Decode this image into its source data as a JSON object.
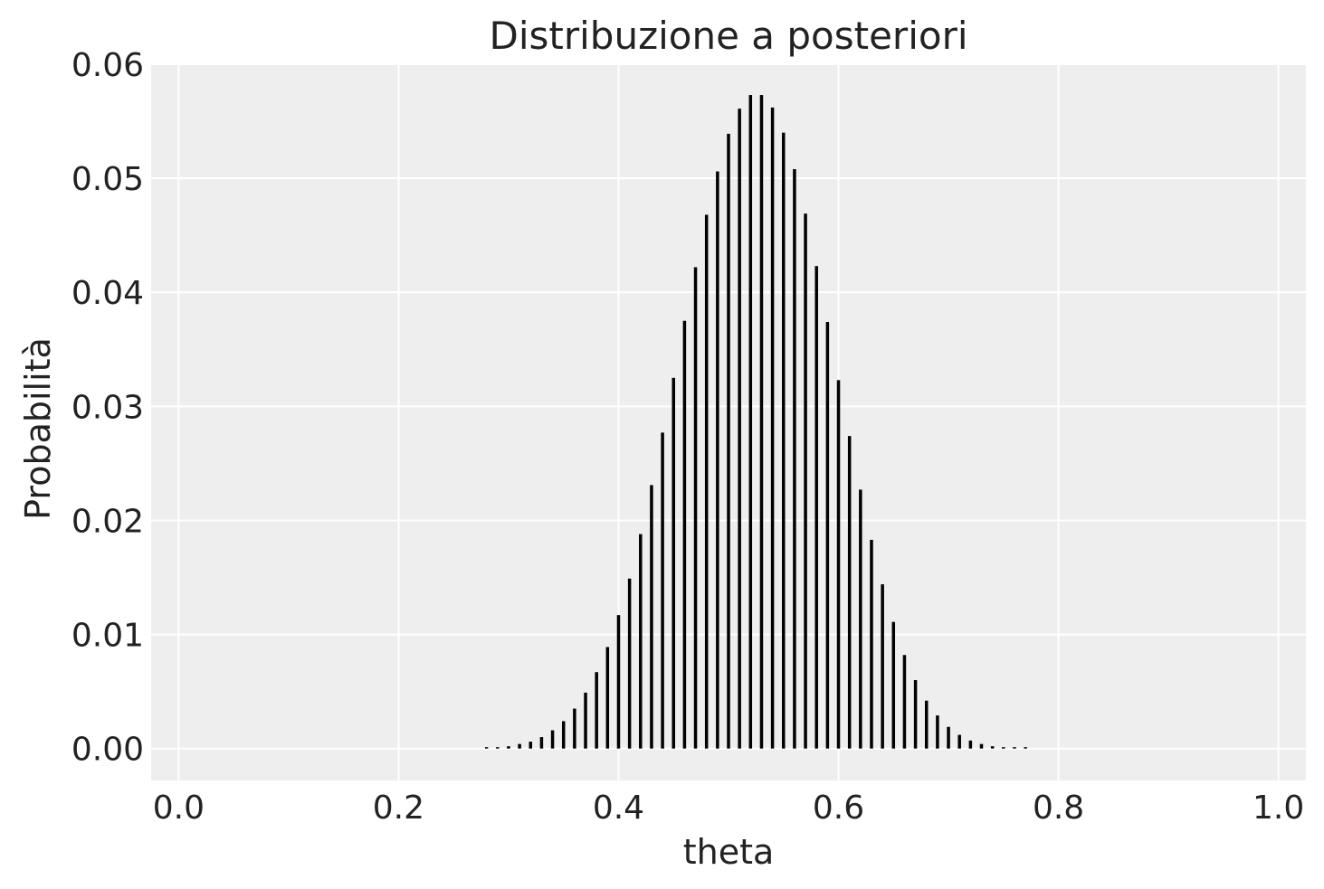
{
  "chart_data": {
    "type": "bar",
    "title": "Distribuzione a posteriori",
    "xlabel": "theta",
    "ylabel": "Probabilità",
    "xlim": [
      -0.025,
      1.025
    ],
    "ylim": [
      -0.0028,
      0.06
    ],
    "xticks": [
      0.0,
      0.2,
      0.4,
      0.6,
      0.8,
      1.0
    ],
    "xtick_labels": [
      "0.0",
      "0.2",
      "0.4",
      "0.6",
      "0.8",
      "1.0"
    ],
    "yticks": [
      0.0,
      0.01,
      0.02,
      0.03,
      0.04,
      0.05,
      0.06
    ],
    "ytick_labels": [
      "0.00",
      "0.01",
      "0.02",
      "0.03",
      "0.04",
      "0.05",
      "0.06"
    ],
    "grid": true,
    "background_color": "#eeeeee",
    "bar_color": "#000000",
    "x": [
      0.28,
      0.29,
      0.3,
      0.31,
      0.32,
      0.33,
      0.34,
      0.35,
      0.36,
      0.37,
      0.38,
      0.39,
      0.4,
      0.41,
      0.42,
      0.43,
      0.44,
      0.45,
      0.46,
      0.47,
      0.48,
      0.49,
      0.5,
      0.51,
      0.52,
      0.53,
      0.54,
      0.55,
      0.56,
      0.57,
      0.58,
      0.59,
      0.6,
      0.61,
      0.62,
      0.63,
      0.64,
      0.65,
      0.66,
      0.67,
      0.68,
      0.69,
      0.7,
      0.71,
      0.72,
      0.73,
      0.74,
      0.75,
      0.76,
      0.77
    ],
    "values": [
      0.0001,
      0.0001,
      0.0002,
      0.0004,
      0.0006,
      0.001,
      0.0016,
      0.0024,
      0.0035,
      0.0049,
      0.0067,
      0.0089,
      0.0117,
      0.0149,
      0.0188,
      0.0231,
      0.0277,
      0.0325,
      0.0375,
      0.0422,
      0.0468,
      0.0506,
      0.0539,
      0.0561,
      0.0573,
      0.0573,
      0.0562,
      0.054,
      0.0508,
      0.0469,
      0.0423,
      0.0374,
      0.0323,
      0.0274,
      0.0227,
      0.0183,
      0.0144,
      0.0111,
      0.0082,
      0.006,
      0.0042,
      0.0029,
      0.0019,
      0.0012,
      0.0007,
      0.0004,
      0.0002,
      0.0001,
      0.0001,
      0.0001
    ]
  }
}
